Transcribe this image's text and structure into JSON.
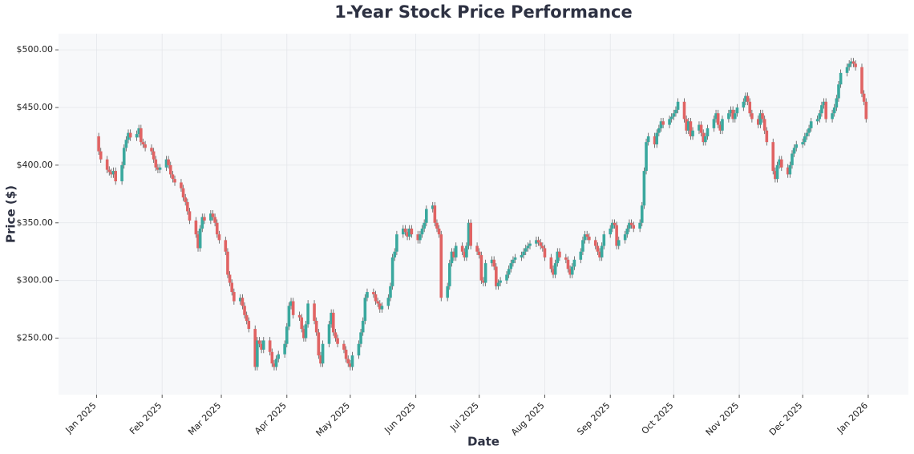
{
  "chart_data": {
    "type": "candlestick",
    "title": "1-Year Stock Price Performance",
    "x_label": "Date",
    "y_label": "Price ($)",
    "up_color": "#3aa89e",
    "down_color": "#e06363",
    "grid": true,
    "ylim": [
      201,
      514
    ],
    "yticks": [
      {
        "value": 250,
        "label": "$250.00"
      },
      {
        "value": 300,
        "label": "$300.00"
      },
      {
        "value": 350,
        "label": "$350.00"
      },
      {
        "value": 400,
        "label": "$400.00"
      },
      {
        "value": 450,
        "label": "$450.00"
      },
      {
        "value": 500,
        "label": "$500.00"
      }
    ],
    "xlim": [
      "2024-12-14",
      "2026-01-20"
    ],
    "xticks": [
      {
        "value": "2025-01-01",
        "label": "Jan 2025"
      },
      {
        "value": "2025-02-01",
        "label": "Feb 2025"
      },
      {
        "value": "2025-03-01",
        "label": "Mar 2025"
      },
      {
        "value": "2025-04-01",
        "label": "Apr 2025"
      },
      {
        "value": "2025-05-01",
        "label": "May 2025"
      },
      {
        "value": "2025-06-01",
        "label": "Jun 2025"
      },
      {
        "value": "2025-07-01",
        "label": "Jul 2025"
      },
      {
        "value": "2025-08-01",
        "label": "Aug 2025"
      },
      {
        "value": "2025-09-01",
        "label": "Sep 2025"
      },
      {
        "value": "2025-10-01",
        "label": "Oct 2025"
      },
      {
        "value": "2025-11-01",
        "label": "Nov 2025"
      },
      {
        "value": "2025-12-01",
        "label": "Dec 2025"
      },
      {
        "value": "2026-01-01",
        "label": "Jan 2026"
      }
    ],
    "x": [
      "2025-01-02",
      "2025-01-03",
      "2025-01-06",
      "2025-01-07",
      "2025-01-08",
      "2025-01-09",
      "2025-01-10",
      "2025-01-13",
      "2025-01-14",
      "2025-01-15",
      "2025-01-16",
      "2025-01-17",
      "2025-01-20",
      "2025-01-21",
      "2025-01-22",
      "2025-01-23",
      "2025-01-24",
      "2025-01-27",
      "2025-01-28",
      "2025-01-29",
      "2025-01-30",
      "2025-01-31",
      "2025-02-03",
      "2025-02-04",
      "2025-02-05",
      "2025-02-06",
      "2025-02-07",
      "2025-02-10",
      "2025-02-11",
      "2025-02-12",
      "2025-02-13",
      "2025-02-14",
      "2025-02-17",
      "2025-02-18",
      "2025-02-19",
      "2025-02-20",
      "2025-02-21",
      "2025-02-24",
      "2025-02-25",
      "2025-02-26",
      "2025-02-27",
      "2025-02-28",
      "2025-03-03",
      "2025-03-04",
      "2025-03-05",
      "2025-03-06",
      "2025-03-07",
      "2025-03-10",
      "2025-03-11",
      "2025-03-12",
      "2025-03-13",
      "2025-03-14",
      "2025-03-17",
      "2025-03-18",
      "2025-03-19",
      "2025-03-20",
      "2025-03-21",
      "2025-03-24",
      "2025-03-25",
      "2025-03-26",
      "2025-03-27",
      "2025-03-28",
      "2025-03-31",
      "2025-04-01",
      "2025-04-02",
      "2025-04-03",
      "2025-04-04",
      "2025-04-07",
      "2025-04-08",
      "2025-04-09",
      "2025-04-10",
      "2025-04-11",
      "2025-04-14",
      "2025-04-15",
      "2025-04-16",
      "2025-04-17",
      "2025-04-18",
      "2025-04-21",
      "2025-04-22",
      "2025-04-23",
      "2025-04-24",
      "2025-04-25",
      "2025-04-28",
      "2025-04-29",
      "2025-04-30",
      "2025-05-01",
      "2025-05-02",
      "2025-05-05",
      "2025-05-06",
      "2025-05-07",
      "2025-05-08",
      "2025-05-09",
      "2025-05-12",
      "2025-05-13",
      "2025-05-14",
      "2025-05-15",
      "2025-05-16",
      "2025-05-19",
      "2025-05-20",
      "2025-05-21",
      "2025-05-22",
      "2025-05-23",
      "2025-05-26",
      "2025-05-27",
      "2025-05-28",
      "2025-05-29",
      "2025-05-30",
      "2025-06-02",
      "2025-06-03",
      "2025-06-04",
      "2025-06-05",
      "2025-06-06",
      "2025-06-09",
      "2025-06-10",
      "2025-06-11",
      "2025-06-12",
      "2025-06-13",
      "2025-06-16",
      "2025-06-17",
      "2025-06-18",
      "2025-06-19",
      "2025-06-20",
      "2025-06-23",
      "2025-06-24",
      "2025-06-25",
      "2025-06-26",
      "2025-06-27",
      "2025-06-30",
      "2025-07-01",
      "2025-07-02",
      "2025-07-03",
      "2025-07-04",
      "2025-07-07",
      "2025-07-08",
      "2025-07-09",
      "2025-07-10",
      "2025-07-11",
      "2025-07-14",
      "2025-07-15",
      "2025-07-16",
      "2025-07-17",
      "2025-07-18",
      "2025-07-21",
      "2025-07-22",
      "2025-07-23",
      "2025-07-24",
      "2025-07-25",
      "2025-07-28",
      "2025-07-29",
      "2025-07-30",
      "2025-07-31",
      "2025-08-01",
      "2025-08-04",
      "2025-08-05",
      "2025-08-06",
      "2025-08-07",
      "2025-08-08",
      "2025-08-11",
      "2025-08-12",
      "2025-08-13",
      "2025-08-14",
      "2025-08-15",
      "2025-08-18",
      "2025-08-19",
      "2025-08-20",
      "2025-08-21",
      "2025-08-22",
      "2025-08-25",
      "2025-08-26",
      "2025-08-27",
      "2025-08-28",
      "2025-08-29",
      "2025-09-01",
      "2025-09-02",
      "2025-09-03",
      "2025-09-04",
      "2025-09-05",
      "2025-09-08",
      "2025-09-09",
      "2025-09-10",
      "2025-09-11",
      "2025-09-12",
      "2025-09-15",
      "2025-09-16",
      "2025-09-17",
      "2025-09-18",
      "2025-09-19",
      "2025-09-22",
      "2025-09-23",
      "2025-09-24",
      "2025-09-25",
      "2025-09-26",
      "2025-09-29",
      "2025-09-30",
      "2025-10-01",
      "2025-10-02",
      "2025-10-03",
      "2025-10-06",
      "2025-10-07",
      "2025-10-08",
      "2025-10-09",
      "2025-10-10",
      "2025-10-13",
      "2025-10-14",
      "2025-10-15",
      "2025-10-16",
      "2025-10-17",
      "2025-10-20",
      "2025-10-21",
      "2025-10-22",
      "2025-10-23",
      "2025-10-24",
      "2025-10-27",
      "2025-10-28",
      "2025-10-29",
      "2025-10-30",
      "2025-10-31",
      "2025-11-03",
      "2025-11-04",
      "2025-11-05",
      "2025-11-06",
      "2025-11-07",
      "2025-11-10",
      "2025-11-11",
      "2025-11-12",
      "2025-11-13",
      "2025-11-14",
      "2025-11-17",
      "2025-11-18",
      "2025-11-19",
      "2025-11-20",
      "2025-11-21",
      "2025-11-24",
      "2025-11-25",
      "2025-11-26",
      "2025-11-27",
      "2025-11-28",
      "2025-12-01",
      "2025-12-02",
      "2025-12-03",
      "2025-12-04",
      "2025-12-05",
      "2025-12-08",
      "2025-12-09",
      "2025-12-10",
      "2025-12-11",
      "2025-12-12",
      "2025-12-15",
      "2025-12-16",
      "2025-12-17",
      "2025-12-18",
      "2025-12-19",
      "2025-12-22",
      "2025-12-23",
      "2025-12-24",
      "2025-12-25",
      "2025-12-26",
      "2025-12-29",
      "2025-12-30",
      "2025-12-31"
    ],
    "open": [
      425,
      412,
      405,
      396,
      394,
      392,
      395,
      386,
      400,
      415,
      422,
      428,
      424,
      427,
      432,
      420,
      418,
      415,
      412,
      405,
      398,
      396,
      398,
      405,
      400,
      392,
      388,
      385,
      380,
      372,
      368,
      360,
      352,
      340,
      328,
      345,
      355,
      352,
      358,
      355,
      350,
      340,
      335,
      325,
      305,
      298,
      290,
      282,
      285,
      278,
      270,
      265,
      258,
      225,
      248,
      245,
      240,
      248,
      238,
      228,
      225,
      232,
      236,
      245,
      260,
      278,
      282,
      270,
      268,
      258,
      250,
      262,
      280,
      265,
      255,
      235,
      228,
      245,
      262,
      272,
      255,
      250,
      245,
      240,
      232,
      228,
      225,
      235,
      245,
      255,
      265,
      285,
      290,
      288,
      282,
      280,
      275,
      278,
      285,
      295,
      320,
      325,
      340,
      345,
      342,
      338,
      345,
      340,
      335,
      340,
      345,
      350,
      362,
      365,
      350,
      345,
      340,
      285,
      295,
      315,
      325,
      320,
      330,
      325,
      320,
      330,
      350,
      330,
      325,
      322,
      300,
      298,
      315,
      318,
      312,
      295,
      298,
      300,
      305,
      310,
      315,
      318,
      320,
      322,
      325,
      328,
      330,
      332,
      335,
      333,
      330,
      328,
      320,
      310,
      305,
      315,
      325,
      320,
      318,
      310,
      305,
      312,
      318,
      325,
      335,
      340,
      338,
      335,
      330,
      325,
      320,
      330,
      340,
      345,
      350,
      348,
      330,
      335,
      340,
      345,
      350,
      348,
      345,
      350,
      365,
      395,
      420,
      425,
      418,
      428,
      432,
      438,
      435,
      440,
      442,
      445,
      448,
      455,
      440,
      430,
      438,
      425,
      430,
      435,
      428,
      420,
      425,
      432,
      440,
      445,
      435,
      430,
      440,
      445,
      448,
      440,
      445,
      450,
      455,
      460,
      455,
      445,
      440,
      435,
      445,
      440,
      430,
      420,
      395,
      388,
      400,
      405,
      398,
      392,
      400,
      410,
      415,
      418,
      420,
      425,
      428,
      432,
      438,
      440,
      445,
      452,
      455,
      440,
      445,
      450,
      458,
      470,
      480,
      485,
      488,
      490,
      488,
      485,
      462,
      455
    ],
    "high": [
      428,
      415,
      408,
      399,
      397,
      398,
      398,
      403,
      418,
      425,
      431,
      431,
      430,
      435,
      435,
      423,
      421,
      418,
      415,
      408,
      401,
      401,
      408,
      408,
      403,
      395,
      391,
      388,
      383,
      375,
      371,
      363,
      355,
      343,
      348,
      358,
      358,
      361,
      361,
      358,
      353,
      343,
      338,
      328,
      308,
      301,
      293,
      288,
      288,
      281,
      273,
      268,
      261,
      251,
      251,
      248,
      251,
      251,
      241,
      231,
      235,
      239,
      248,
      263,
      281,
      285,
      285,
      273,
      271,
      261,
      265,
      283,
      283,
      268,
      258,
      238,
      248,
      265,
      275,
      275,
      258,
      253,
      248,
      243,
      235,
      231,
      238,
      248,
      258,
      268,
      288,
      293,
      293,
      291,
      285,
      283,
      281,
      288,
      298,
      323,
      328,
      343,
      348,
      348,
      345,
      348,
      348,
      343,
      343,
      348,
      353,
      365,
      368,
      368,
      353,
      348,
      343,
      298,
      318,
      328,
      328,
      333,
      333,
      328,
      333,
      353,
      353,
      333,
      328,
      325,
      303,
      318,
      321,
      321,
      315,
      301,
      303,
      308,
      313,
      318,
      321,
      323,
      325,
      328,
      331,
      333,
      335,
      338,
      338,
      336,
      333,
      331,
      323,
      313,
      318,
      328,
      328,
      323,
      321,
      313,
      315,
      321,
      328,
      338,
      343,
      343,
      341,
      338,
      333,
      328,
      333,
      343,
      348,
      353,
      353,
      351,
      338,
      343,
      348,
      353,
      353,
      351,
      353,
      368,
      398,
      423,
      428,
      428,
      431,
      435,
      441,
      441,
      443,
      445,
      448,
      451,
      458,
      458,
      443,
      441,
      441,
      433,
      438,
      438,
      431,
      428,
      435,
      443,
      448,
      448,
      438,
      443,
      448,
      451,
      451,
      448,
      453,
      458,
      463,
      463,
      458,
      448,
      443,
      448,
      448,
      443,
      433,
      423,
      398,
      403,
      408,
      408,
      401,
      403,
      413,
      418,
      421,
      423,
      428,
      431,
      435,
      441,
      443,
      448,
      455,
      458,
      458,
      448,
      453,
      461,
      473,
      483,
      488,
      491,
      493,
      493,
      491,
      488,
      465,
      458
    ],
    "low": [
      409,
      402,
      393,
      391,
      389,
      389,
      383,
      383,
      397,
      412,
      419,
      421,
      421,
      424,
      417,
      415,
      412,
      409,
      402,
      395,
      393,
      393,
      395,
      397,
      389,
      385,
      382,
      377,
      369,
      365,
      357,
      349,
      337,
      325,
      325,
      342,
      349,
      349,
      352,
      347,
      337,
      332,
      322,
      302,
      295,
      287,
      279,
      279,
      275,
      267,
      262,
      255,
      222,
      222,
      242,
      237,
      237,
      235,
      225,
      222,
      222,
      229,
      233,
      242,
      257,
      275,
      267,
      265,
      255,
      247,
      247,
      259,
      262,
      252,
      232,
      225,
      225,
      242,
      259,
      252,
      247,
      242,
      237,
      229,
      225,
      222,
      222,
      232,
      242,
      252,
      262,
      282,
      285,
      279,
      277,
      272,
      272,
      275,
      282,
      292,
      317,
      322,
      337,
      339,
      335,
      335,
      337,
      332,
      332,
      337,
      342,
      347,
      359,
      347,
      342,
      337,
      282,
      282,
      292,
      312,
      317,
      317,
      322,
      317,
      317,
      327,
      327,
      322,
      319,
      297,
      295,
      295,
      312,
      309,
      292,
      292,
      295,
      297,
      302,
      307,
      312,
      315,
      317,
      319,
      322,
      325,
      327,
      329,
      330,
      327,
      325,
      317,
      307,
      302,
      302,
      312,
      317,
      315,
      307,
      302,
      302,
      309,
      315,
      322,
      332,
      335,
      332,
      327,
      322,
      317,
      317,
      327,
      337,
      342,
      345,
      327,
      327,
      332,
      337,
      342,
      345,
      342,
      342,
      347,
      362,
      392,
      417,
      415,
      415,
      425,
      429,
      432,
      432,
      437,
      439,
      442,
      445,
      437,
      427,
      427,
      422,
      422,
      427,
      425,
      417,
      417,
      422,
      429,
      437,
      432,
      427,
      427,
      437,
      442,
      437,
      437,
      442,
      447,
      452,
      452,
      442,
      437,
      432,
      432,
      437,
      427,
      417,
      392,
      385,
      385,
      397,
      395,
      389,
      389,
      397,
      407,
      412,
      415,
      417,
      422,
      425,
      429,
      435,
      437,
      442,
      449,
      437,
      437,
      442,
      447,
      455,
      467,
      477,
      482,
      485,
      485,
      482,
      459,
      452,
      437
    ],
    "close": [
      412,
      405,
      396,
      394,
      392,
      395,
      386,
      400,
      415,
      422,
      428,
      424,
      427,
      432,
      420,
      418,
      415,
      412,
      405,
      398,
      396,
      398,
      405,
      400,
      392,
      388,
      385,
      380,
      372,
      368,
      360,
      352,
      340,
      328,
      345,
      355,
      352,
      358,
      355,
      350,
      340,
      335,
      325,
      305,
      298,
      290,
      282,
      285,
      278,
      270,
      265,
      258,
      225,
      248,
      245,
      240,
      248,
      238,
      228,
      225,
      232,
      236,
      245,
      260,
      278,
      282,
      270,
      268,
      258,
      250,
      262,
      280,
      265,
      255,
      235,
      228,
      245,
      262,
      272,
      255,
      250,
      245,
      240,
      232,
      228,
      225,
      235,
      245,
      255,
      265,
      285,
      290,
      288,
      282,
      280,
      275,
      278,
      285,
      295,
      320,
      325,
      340,
      345,
      342,
      338,
      345,
      340,
      335,
      340,
      345,
      350,
      362,
      365,
      350,
      345,
      340,
      285,
      295,
      315,
      325,
      320,
      330,
      325,
      320,
      330,
      350,
      330,
      325,
      322,
      300,
      298,
      315,
      318,
      312,
      295,
      298,
      300,
      305,
      310,
      315,
      318,
      320,
      322,
      325,
      328,
      330,
      332,
      335,
      333,
      330,
      328,
      320,
      310,
      305,
      315,
      325,
      320,
      318,
      310,
      305,
      312,
      318,
      325,
      335,
      340,
      338,
      335,
      330,
      325,
      320,
      330,
      340,
      345,
      350,
      348,
      330,
      335,
      340,
      345,
      350,
      348,
      345,
      350,
      365,
      395,
      420,
      425,
      418,
      428,
      432,
      438,
      435,
      440,
      442,
      445,
      448,
      455,
      440,
      430,
      438,
      425,
      430,
      435,
      428,
      420,
      425,
      432,
      440,
      445,
      435,
      430,
      440,
      445,
      448,
      440,
      445,
      450,
      455,
      460,
      455,
      445,
      440,
      435,
      445,
      440,
      430,
      420,
      395,
      388,
      400,
      405,
      398,
      392,
      400,
      410,
      415,
      418,
      420,
      425,
      428,
      432,
      438,
      440,
      445,
      452,
      455,
      440,
      445,
      450,
      458,
      470,
      480,
      485,
      488,
      490,
      488,
      485,
      462,
      455,
      440
    ]
  }
}
